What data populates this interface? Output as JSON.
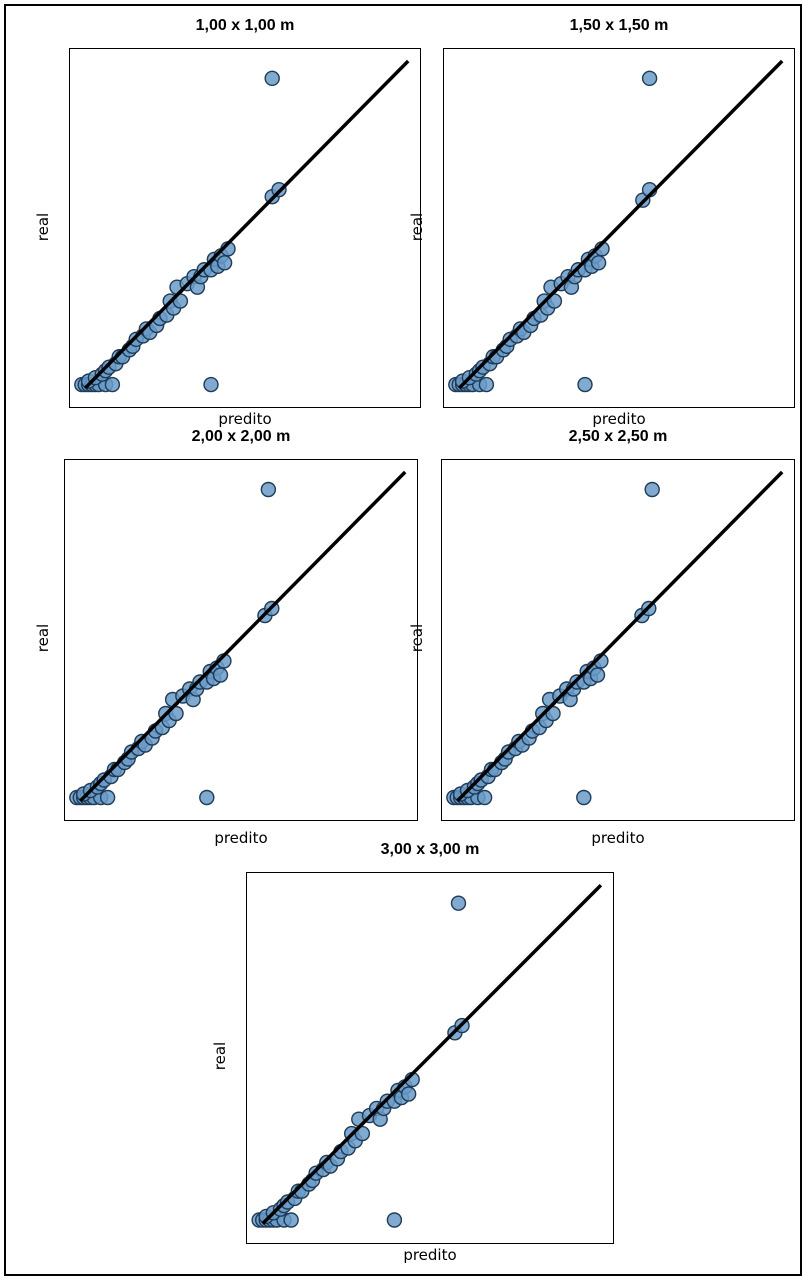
{
  "chart_data": [
    {
      "type": "scatter",
      "title": "1,00 x 1,00 m",
      "xlabel": "predito",
      "ylabel": "real",
      "axes_ticks": "none",
      "grid": false,
      "reference_line": "y = x",
      "xlim": [
        0,
        100
      ],
      "ylim": [
        0,
        100
      ],
      "marker_color": "#6a9bc8",
      "marker_edge": "#1f3b57",
      "line_color": "#000000",
      "outliers": [
        {
          "x": 58,
          "y": 93
        },
        {
          "x": 40,
          "y": 5
        }
      ],
      "cluster_points": [
        {
          "x": 2,
          "y": 5
        },
        {
          "x": 3,
          "y": 5
        },
        {
          "x": 4,
          "y": 5
        },
        {
          "x": 5,
          "y": 5
        },
        {
          "x": 6,
          "y": 5
        },
        {
          "x": 7,
          "y": 5
        },
        {
          "x": 9,
          "y": 5
        },
        {
          "x": 11,
          "y": 5
        },
        {
          "x": 4,
          "y": 6
        },
        {
          "x": 6,
          "y": 7
        },
        {
          "x": 8,
          "y": 8
        },
        {
          "x": 9,
          "y": 9
        },
        {
          "x": 10,
          "y": 10
        },
        {
          "x": 12,
          "y": 11
        },
        {
          "x": 13,
          "y": 13
        },
        {
          "x": 14,
          "y": 13
        },
        {
          "x": 16,
          "y": 15
        },
        {
          "x": 17,
          "y": 16
        },
        {
          "x": 18,
          "y": 18
        },
        {
          "x": 20,
          "y": 19
        },
        {
          "x": 21,
          "y": 21
        },
        {
          "x": 22,
          "y": 20
        },
        {
          "x": 24,
          "y": 22
        },
        {
          "x": 25,
          "y": 24
        },
        {
          "x": 27,
          "y": 25
        },
        {
          "x": 28,
          "y": 29
        },
        {
          "x": 29,
          "y": 27
        },
        {
          "x": 31,
          "y": 29
        },
        {
          "x": 30,
          "y": 33
        },
        {
          "x": 33,
          "y": 34
        },
        {
          "x": 35,
          "y": 36
        },
        {
          "x": 36,
          "y": 33
        },
        {
          "x": 37,
          "y": 36
        },
        {
          "x": 38,
          "y": 38
        },
        {
          "x": 40,
          "y": 38
        },
        {
          "x": 41,
          "y": 41
        },
        {
          "x": 42,
          "y": 39
        },
        {
          "x": 43,
          "y": 42
        },
        {
          "x": 45,
          "y": 44
        },
        {
          "x": 44,
          "y": 40
        },
        {
          "x": 58,
          "y": 59
        },
        {
          "x": 60,
          "y": 61
        }
      ]
    },
    {
      "type": "scatter",
      "title": "1,50 x 1,50 m",
      "xlabel": "predito",
      "ylabel": "real",
      "axes_ticks": "none",
      "grid": false,
      "reference_line": "y = x",
      "xlim": [
        0,
        100
      ],
      "ylim": [
        0,
        100
      ],
      "marker_color": "#6a9bc8",
      "marker_edge": "#1f3b57",
      "line_color": "#000000",
      "outliers": [
        {
          "x": 59,
          "y": 93
        },
        {
          "x": 40,
          "y": 5
        }
      ],
      "cluster_points": [
        {
          "x": 2,
          "y": 5
        },
        {
          "x": 3,
          "y": 5
        },
        {
          "x": 4,
          "y": 5
        },
        {
          "x": 5,
          "y": 5
        },
        {
          "x": 6,
          "y": 5
        },
        {
          "x": 7,
          "y": 5
        },
        {
          "x": 9,
          "y": 5
        },
        {
          "x": 11,
          "y": 5
        },
        {
          "x": 4,
          "y": 6
        },
        {
          "x": 6,
          "y": 7
        },
        {
          "x": 8,
          "y": 8
        },
        {
          "x": 9,
          "y": 9
        },
        {
          "x": 10,
          "y": 10
        },
        {
          "x": 12,
          "y": 11
        },
        {
          "x": 13,
          "y": 13
        },
        {
          "x": 14,
          "y": 13
        },
        {
          "x": 16,
          "y": 15
        },
        {
          "x": 17,
          "y": 16
        },
        {
          "x": 18,
          "y": 18
        },
        {
          "x": 20,
          "y": 19
        },
        {
          "x": 21,
          "y": 21
        },
        {
          "x": 22,
          "y": 20
        },
        {
          "x": 24,
          "y": 22
        },
        {
          "x": 25,
          "y": 24
        },
        {
          "x": 27,
          "y": 25
        },
        {
          "x": 28,
          "y": 29
        },
        {
          "x": 29,
          "y": 27
        },
        {
          "x": 31,
          "y": 29
        },
        {
          "x": 30,
          "y": 33
        },
        {
          "x": 33,
          "y": 34
        },
        {
          "x": 35,
          "y": 36
        },
        {
          "x": 36,
          "y": 33
        },
        {
          "x": 37,
          "y": 36
        },
        {
          "x": 38,
          "y": 38
        },
        {
          "x": 40,
          "y": 38
        },
        {
          "x": 41,
          "y": 41
        },
        {
          "x": 42,
          "y": 39
        },
        {
          "x": 43,
          "y": 42
        },
        {
          "x": 45,
          "y": 44
        },
        {
          "x": 44,
          "y": 40
        },
        {
          "x": 57,
          "y": 58
        },
        {
          "x": 59,
          "y": 61
        }
      ]
    },
    {
      "type": "scatter",
      "title": "2,00 x 2,00 m",
      "xlabel": "predito",
      "ylabel": "real",
      "axes_ticks": "none",
      "grid": false,
      "reference_line": "y = x",
      "xlim": [
        0,
        100
      ],
      "ylim": [
        0,
        100
      ],
      "marker_color": "#6a9bc8",
      "marker_edge": "#1f3b57",
      "line_color": "#000000",
      "outliers": [
        {
          "x": 58,
          "y": 93
        },
        {
          "x": 40,
          "y": 5
        }
      ],
      "cluster_points": [
        {
          "x": 2,
          "y": 5
        },
        {
          "x": 3,
          "y": 5
        },
        {
          "x": 4,
          "y": 5
        },
        {
          "x": 5,
          "y": 5
        },
        {
          "x": 6,
          "y": 5
        },
        {
          "x": 7,
          "y": 5
        },
        {
          "x": 9,
          "y": 5
        },
        {
          "x": 11,
          "y": 5
        },
        {
          "x": 4,
          "y": 6
        },
        {
          "x": 6,
          "y": 7
        },
        {
          "x": 8,
          "y": 8
        },
        {
          "x": 9,
          "y": 9
        },
        {
          "x": 10,
          "y": 10
        },
        {
          "x": 12,
          "y": 11
        },
        {
          "x": 13,
          "y": 13
        },
        {
          "x": 14,
          "y": 13
        },
        {
          "x": 16,
          "y": 15
        },
        {
          "x": 17,
          "y": 16
        },
        {
          "x": 18,
          "y": 18
        },
        {
          "x": 20,
          "y": 19
        },
        {
          "x": 21,
          "y": 21
        },
        {
          "x": 22,
          "y": 20
        },
        {
          "x": 24,
          "y": 22
        },
        {
          "x": 25,
          "y": 24
        },
        {
          "x": 27,
          "y": 25
        },
        {
          "x": 28,
          "y": 29
        },
        {
          "x": 29,
          "y": 27
        },
        {
          "x": 31,
          "y": 29
        },
        {
          "x": 30,
          "y": 33
        },
        {
          "x": 33,
          "y": 34
        },
        {
          "x": 35,
          "y": 36
        },
        {
          "x": 36,
          "y": 33
        },
        {
          "x": 37,
          "y": 36
        },
        {
          "x": 38,
          "y": 38
        },
        {
          "x": 40,
          "y": 38
        },
        {
          "x": 41,
          "y": 41
        },
        {
          "x": 42,
          "y": 39
        },
        {
          "x": 43,
          "y": 42
        },
        {
          "x": 45,
          "y": 44
        },
        {
          "x": 44,
          "y": 40
        },
        {
          "x": 57,
          "y": 57
        },
        {
          "x": 59,
          "y": 59
        }
      ]
    },
    {
      "type": "scatter",
      "title": "2,50 x 2,50 m",
      "xlabel": "predito",
      "ylabel": "real",
      "axes_ticks": "none",
      "grid": false,
      "reference_line": "y = x",
      "xlim": [
        0,
        100
      ],
      "ylim": [
        0,
        100
      ],
      "marker_color": "#6a9bc8",
      "marker_edge": "#1f3b57",
      "line_color": "#000000",
      "outliers": [
        {
          "x": 60,
          "y": 93
        },
        {
          "x": 40,
          "y": 5
        }
      ],
      "cluster_points": [
        {
          "x": 2,
          "y": 5
        },
        {
          "x": 3,
          "y": 5
        },
        {
          "x": 4,
          "y": 5
        },
        {
          "x": 5,
          "y": 5
        },
        {
          "x": 6,
          "y": 5
        },
        {
          "x": 7,
          "y": 5
        },
        {
          "x": 9,
          "y": 5
        },
        {
          "x": 11,
          "y": 5
        },
        {
          "x": 4,
          "y": 6
        },
        {
          "x": 6,
          "y": 7
        },
        {
          "x": 8,
          "y": 8
        },
        {
          "x": 9,
          "y": 9
        },
        {
          "x": 10,
          "y": 10
        },
        {
          "x": 12,
          "y": 11
        },
        {
          "x": 13,
          "y": 13
        },
        {
          "x": 14,
          "y": 13
        },
        {
          "x": 16,
          "y": 15
        },
        {
          "x": 17,
          "y": 16
        },
        {
          "x": 18,
          "y": 18
        },
        {
          "x": 20,
          "y": 19
        },
        {
          "x": 21,
          "y": 21
        },
        {
          "x": 22,
          "y": 20
        },
        {
          "x": 24,
          "y": 22
        },
        {
          "x": 25,
          "y": 24
        },
        {
          "x": 27,
          "y": 25
        },
        {
          "x": 28,
          "y": 29
        },
        {
          "x": 29,
          "y": 27
        },
        {
          "x": 31,
          "y": 29
        },
        {
          "x": 30,
          "y": 33
        },
        {
          "x": 33,
          "y": 34
        },
        {
          "x": 35,
          "y": 36
        },
        {
          "x": 36,
          "y": 33
        },
        {
          "x": 37,
          "y": 36
        },
        {
          "x": 38,
          "y": 38
        },
        {
          "x": 40,
          "y": 38
        },
        {
          "x": 41,
          "y": 41
        },
        {
          "x": 42,
          "y": 39
        },
        {
          "x": 43,
          "y": 42
        },
        {
          "x": 45,
          "y": 44
        },
        {
          "x": 44,
          "y": 40
        },
        {
          "x": 57,
          "y": 57
        },
        {
          "x": 59,
          "y": 59
        }
      ]
    },
    {
      "type": "scatter",
      "title": "3,00 x 3,00 m",
      "xlabel": "predito",
      "ylabel": "real",
      "axes_ticks": "none",
      "grid": false,
      "reference_line": "y = x",
      "xlim": [
        0,
        100
      ],
      "ylim": [
        0,
        100
      ],
      "marker_color": "#6a9bc8",
      "marker_edge": "#1f3b57",
      "line_color": "#000000",
      "outliers": [
        {
          "x": 58,
          "y": 93
        },
        {
          "x": 40,
          "y": 5
        }
      ],
      "cluster_points": [
        {
          "x": 2,
          "y": 5
        },
        {
          "x": 3,
          "y": 5
        },
        {
          "x": 4,
          "y": 5
        },
        {
          "x": 5,
          "y": 5
        },
        {
          "x": 6,
          "y": 5
        },
        {
          "x": 7,
          "y": 5
        },
        {
          "x": 9,
          "y": 5
        },
        {
          "x": 11,
          "y": 5
        },
        {
          "x": 4,
          "y": 6
        },
        {
          "x": 6,
          "y": 7
        },
        {
          "x": 8,
          "y": 8
        },
        {
          "x": 9,
          "y": 9
        },
        {
          "x": 10,
          "y": 10
        },
        {
          "x": 12,
          "y": 11
        },
        {
          "x": 13,
          "y": 13
        },
        {
          "x": 14,
          "y": 13
        },
        {
          "x": 16,
          "y": 15
        },
        {
          "x": 17,
          "y": 16
        },
        {
          "x": 18,
          "y": 18
        },
        {
          "x": 20,
          "y": 19
        },
        {
          "x": 21,
          "y": 21
        },
        {
          "x": 22,
          "y": 20
        },
        {
          "x": 24,
          "y": 22
        },
        {
          "x": 25,
          "y": 24
        },
        {
          "x": 27,
          "y": 25
        },
        {
          "x": 28,
          "y": 29
        },
        {
          "x": 29,
          "y": 27
        },
        {
          "x": 31,
          "y": 29
        },
        {
          "x": 30,
          "y": 33
        },
        {
          "x": 33,
          "y": 34
        },
        {
          "x": 35,
          "y": 36
        },
        {
          "x": 36,
          "y": 33
        },
        {
          "x": 37,
          "y": 36
        },
        {
          "x": 38,
          "y": 38
        },
        {
          "x": 40,
          "y": 38
        },
        {
          "x": 41,
          "y": 41
        },
        {
          "x": 42,
          "y": 39
        },
        {
          "x": 43,
          "y": 42
        },
        {
          "x": 45,
          "y": 44
        },
        {
          "x": 44,
          "y": 40
        },
        {
          "x": 57,
          "y": 57
        },
        {
          "x": 59,
          "y": 59
        }
      ]
    }
  ]
}
